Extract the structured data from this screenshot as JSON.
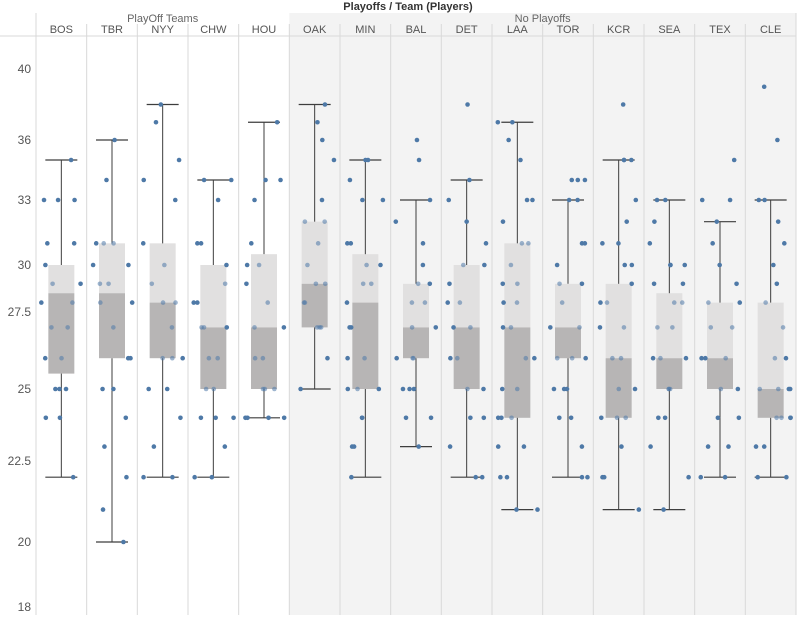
{
  "chart_data": {
    "type": "box-and-whisker with jittered dots",
    "title": "Playoffs / Team (Players)",
    "xlabel": "",
    "ylabel": "",
    "ylim": [
      18,
      41.5
    ],
    "y_ticks": [
      18,
      20,
      22.5,
      25,
      27.5,
      30,
      33,
      36,
      40
    ],
    "y_tick_labels": [
      "18",
      "20",
      "22.5",
      "25",
      "27.5",
      "30",
      "33",
      "36",
      "40"
    ],
    "groups": [
      {
        "label": "PlayOff Teams",
        "teams": [
          "BOS",
          "TBR",
          "NYY",
          "CHW",
          "HOU"
        ]
      },
      {
        "label": "No Playoffs",
        "teams": [
          "OAK",
          "MIN",
          "BAL",
          "DET",
          "LAA",
          "TOR",
          "KCR",
          "SEA",
          "TEX",
          "CLE"
        ]
      }
    ],
    "colors": {
      "point": "#4e79a7",
      "box_lower": "#b7b5b5",
      "box_upper": "#e1e0e0",
      "whisker": "#3d3d3d",
      "shade": "#f3f3f3",
      "grid": "#d9d9d9"
    },
    "teams": [
      {
        "name": "BOS",
        "stats": {
          "min": 22,
          "q1": 25.5,
          "median": 28.5,
          "q3": 30,
          "max": 35
        },
        "points": [
          35,
          33,
          33,
          33,
          31,
          31,
          30,
          29,
          29,
          28,
          28,
          27,
          27,
          26,
          26,
          25,
          25,
          25,
          24,
          24,
          22
        ]
      },
      {
        "name": "TBR",
        "stats": {
          "min": 20,
          "q1": 26,
          "median": 28.5,
          "q3": 31,
          "max": 36
        },
        "points": [
          36,
          34,
          31,
          31,
          31,
          30,
          30,
          29,
          29,
          28,
          28,
          27,
          26,
          26,
          25,
          25,
          24,
          23,
          22,
          21,
          20
        ]
      },
      {
        "name": "NYY",
        "stats": {
          "min": 22,
          "q1": 26,
          "median": 28,
          "q3": 31,
          "max": 38
        },
        "points": [
          38,
          37,
          35,
          34,
          33,
          31,
          30,
          29,
          28,
          28,
          27,
          26,
          26,
          26,
          25,
          25,
          24,
          23,
          22,
          22
        ]
      },
      {
        "name": "CHW",
        "stats": {
          "min": 22,
          "q1": 25,
          "median": 27,
          "q3": 30,
          "max": 34
        },
        "points": [
          34,
          34,
          33,
          31,
          31,
          30,
          29,
          28,
          28,
          27,
          27,
          27,
          26,
          26,
          25,
          25,
          24,
          24,
          24,
          23,
          22,
          22
        ]
      },
      {
        "name": "HOU",
        "stats": {
          "min": 24,
          "q1": 25,
          "median": 27,
          "q3": 30.5,
          "max": 37
        },
        "points": [
          37,
          34,
          34,
          33,
          31,
          30,
          30,
          29,
          28,
          27,
          27,
          26,
          26,
          25,
          25,
          25,
          24,
          24,
          24,
          24
        ]
      },
      {
        "name": "OAK",
        "stats": {
          "min": 25,
          "q1": 27,
          "median": 29,
          "q3": 32,
          "max": 38
        },
        "points": [
          38,
          37,
          36,
          35,
          33,
          32,
          32,
          31,
          30,
          29,
          29,
          28,
          28,
          27,
          27,
          27,
          26,
          25
        ]
      },
      {
        "name": "MIN",
        "stats": {
          "min": 22,
          "q1": 25,
          "median": 28,
          "q3": 30.5,
          "max": 35
        },
        "points": [
          35,
          35,
          34,
          33,
          33,
          31,
          31,
          30,
          30,
          29,
          29,
          28,
          27,
          27,
          26,
          26,
          25,
          25,
          25,
          24,
          24,
          23,
          23,
          22
        ]
      },
      {
        "name": "BAL",
        "stats": {
          "min": 23,
          "q1": 26,
          "median": 27,
          "q3": 29,
          "max": 33
        },
        "points": [
          36,
          35,
          33,
          32,
          31,
          30,
          29,
          29,
          28,
          28,
          27,
          27,
          26,
          26,
          26,
          25,
          25,
          25,
          24,
          24,
          23
        ]
      },
      {
        "name": "DET",
        "stats": {
          "min": 22,
          "q1": 25,
          "median": 27,
          "q3": 30,
          "max": 34
        },
        "points": [
          38,
          34,
          33,
          32,
          31,
          30,
          30,
          29,
          28,
          28,
          27,
          27,
          26,
          26,
          25,
          25,
          24,
          24,
          23,
          22,
          22
        ]
      },
      {
        "name": "LAA",
        "stats": {
          "min": 21,
          "q1": 24,
          "median": 27,
          "q3": 31,
          "max": 37
        },
        "points": [
          37,
          37,
          36,
          35,
          33,
          33,
          32,
          31,
          31,
          30,
          29,
          29,
          28,
          28,
          27,
          27,
          26,
          26,
          25,
          25,
          24,
          24,
          24,
          23,
          23,
          22,
          22,
          21,
          21
        ]
      },
      {
        "name": "TOR",
        "stats": {
          "min": 22,
          "q1": 26,
          "median": 27,
          "q3": 29,
          "max": 33
        },
        "points": [
          34,
          34,
          34,
          33,
          33,
          31,
          31,
          30,
          29,
          29,
          28,
          27,
          27,
          26,
          26,
          26,
          25,
          25,
          25,
          24,
          24,
          23,
          22,
          22
        ]
      },
      {
        "name": "KCR",
        "stats": {
          "min": 21,
          "q1": 24,
          "median": 26,
          "q3": 29,
          "max": 35
        },
        "points": [
          38,
          35,
          35,
          35,
          33,
          32,
          31,
          31,
          30,
          30,
          29,
          28,
          28,
          27,
          27,
          26,
          26,
          25,
          25,
          24,
          24,
          24,
          23,
          22,
          22,
          21
        ]
      },
      {
        "name": "SEA",
        "stats": {
          "min": 21,
          "q1": 25,
          "median": 26,
          "q3": 28.5,
          "max": 33
        },
        "points": [
          33,
          33,
          32,
          31,
          30,
          30,
          30,
          29,
          29,
          28,
          28,
          27,
          27,
          26,
          26,
          26,
          25,
          25,
          25,
          24,
          24,
          23,
          22,
          21
        ]
      },
      {
        "name": "TEX",
        "stats": {
          "min": 22,
          "q1": 25,
          "median": 26,
          "q3": 28,
          "max": 32
        },
        "points": [
          35,
          33,
          33,
          32,
          31,
          30,
          29,
          28,
          28,
          27,
          27,
          26,
          26,
          26,
          25,
          25,
          24,
          24,
          23,
          23,
          22,
          22
        ]
      },
      {
        "name": "CLE",
        "stats": {
          "min": 22,
          "q1": 24,
          "median": 25,
          "q3": 28,
          "max": 33
        },
        "points": [
          39,
          36,
          33,
          33,
          32,
          31,
          30,
          29,
          28,
          27,
          26,
          26,
          25,
          25,
          25,
          25,
          24,
          24,
          24,
          24,
          23,
          23,
          22,
          22
        ]
      }
    ]
  }
}
